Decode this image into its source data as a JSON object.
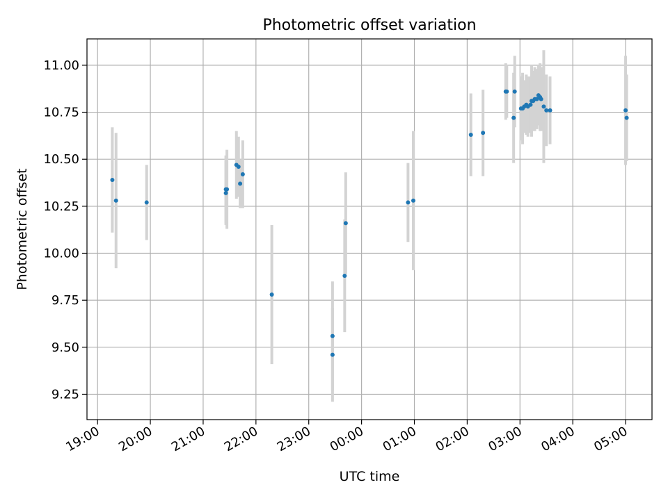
{
  "chart_data": {
    "type": "scatter",
    "title": "Photometric offset variation",
    "xlabel": "UTC time",
    "ylabel": "Photometric offset",
    "x_tick_labels": [
      "19:00",
      "20:00",
      "21:00",
      "22:00",
      "23:00",
      "00:00",
      "01:00",
      "02:00",
      "03:00",
      "04:00",
      "05:00"
    ],
    "x_tick_hours": [
      19,
      20,
      21,
      22,
      23,
      24,
      25,
      26,
      27,
      28,
      29
    ],
    "xlim_hours": [
      18.8,
      29.5
    ],
    "y_ticks": [
      "9.25",
      "9.50",
      "9.75",
      "10.00",
      "10.25",
      "10.50",
      "10.75",
      "11.00"
    ],
    "ylim": [
      9.115,
      11.14
    ],
    "grid": true,
    "marker_color": "#1f77b4",
    "errorbar_color": "#d3d3d3",
    "points_time_hours": [
      19.28,
      19.35,
      19.93,
      21.43,
      21.45,
      21.43,
      21.63,
      21.67,
      21.7,
      21.75,
      22.3,
      23.45,
      23.45,
      23.68,
      23.7,
      24.88,
      24.98,
      26.07,
      26.3,
      26.73,
      26.75,
      26.88,
      26.9,
      27.02,
      27.05,
      27.08,
      27.12,
      27.15,
      27.2,
      27.22,
      27.25,
      27.28,
      27.32,
      27.35,
      27.38,
      27.4,
      27.45,
      27.5,
      27.57,
      29.0,
      29.02
    ],
    "points_offset": [
      10.39,
      10.28,
      10.27,
      10.34,
      10.34,
      10.32,
      10.47,
      10.46,
      10.37,
      10.42,
      9.78,
      9.46,
      9.56,
      9.88,
      10.16,
      10.27,
      10.28,
      10.63,
      10.64,
      10.86,
      10.86,
      10.72,
      10.86,
      10.77,
      10.77,
      10.78,
      10.79,
      10.78,
      10.79,
      10.81,
      10.81,
      10.82,
      10.82,
      10.84,
      10.83,
      10.82,
      10.78,
      10.76,
      10.76,
      10.76,
      10.72
    ],
    "points_error": [
      0.28,
      0.36,
      0.2,
      0.18,
      0.21,
      0.17,
      0.18,
      0.16,
      0.13,
      0.18,
      0.37,
      0.25,
      0.29,
      0.3,
      0.27,
      0.21,
      0.37,
      0.22,
      0.23,
      0.15,
      0.14,
      0.24,
      0.19,
      0.17,
      0.19,
      0.14,
      0.16,
      0.16,
      0.15,
      0.19,
      0.16,
      0.17,
      0.16,
      0.16,
      0.18,
      0.17,
      0.3,
      0.19,
      0.18,
      0.29,
      0.23
    ]
  }
}
